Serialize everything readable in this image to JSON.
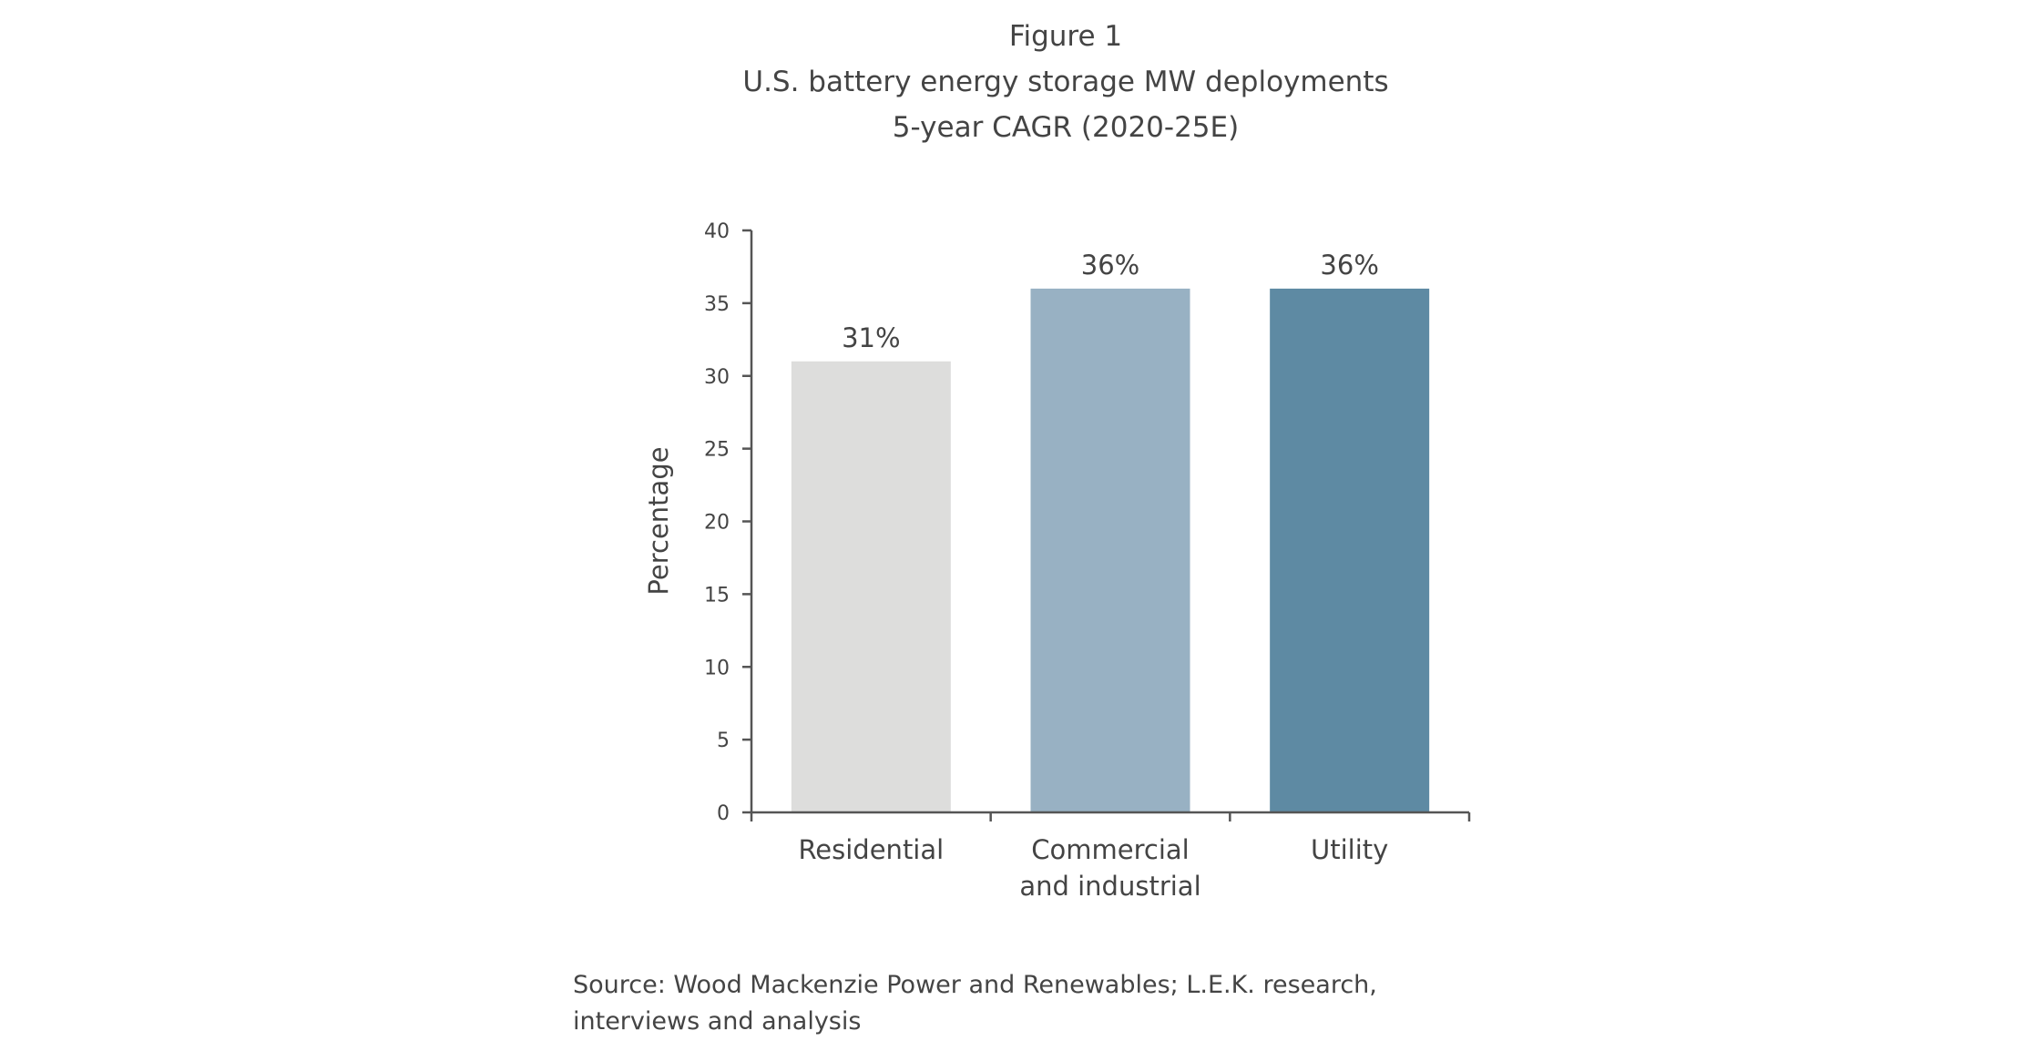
{
  "chart_data": {
    "type": "bar",
    "title": "Figure 1",
    "subtitle": [
      "U.S. battery energy storage MW deployments",
      "5-year CAGR (2020-25E)"
    ],
    "xlabel": "",
    "ylabel": "Percentage",
    "ylim": [
      0,
      40
    ],
    "yticks": [
      0,
      5,
      10,
      15,
      20,
      25,
      30,
      35,
      40
    ],
    "categories": [
      [
        "Residential"
      ],
      [
        "Commercial",
        "and industrial"
      ],
      [
        "Utility"
      ]
    ],
    "values": [
      31,
      36,
      36
    ],
    "data_labels": [
      "31%",
      "36%",
      "36%"
    ],
    "colors": [
      "#dddddc",
      "#98b1c3",
      "#5e8aa3"
    ],
    "grid": false,
    "source": "Source: Wood Mackenzie Power and Renewables; L.E.K. research, interviews and analysis"
  }
}
